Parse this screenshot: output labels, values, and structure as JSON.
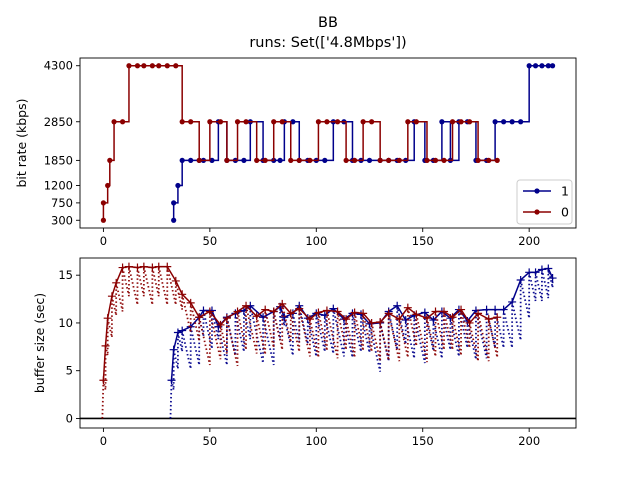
{
  "figure": {
    "title": "BB",
    "subtitle": "runs: Set(['4.8Mbps'])"
  },
  "colors": {
    "run_1": "#00008b",
    "run_0": "#8b0000"
  },
  "chart_data": [
    {
      "type": "line",
      "title": "BB",
      "subtitle": "runs: Set(['4.8Mbps'])",
      "ylabel": "bit rate (kbps)",
      "xlabel": "",
      "xlim": [
        -11,
        222
      ],
      "ylim": [
        100,
        4500
      ],
      "xticks": [
        0,
        50,
        100,
        150,
        200
      ],
      "yticks": [
        300,
        750,
        1200,
        1850,
        2850,
        4300
      ],
      "legend": "lower-right",
      "step": true,
      "series": [
        {
          "name": "1",
          "color": "#00008b",
          "marker": "dot",
          "points": [
            [
              33,
              300
            ],
            [
              33,
              750
            ],
            [
              35,
              1200
            ],
            [
              37,
              1850
            ],
            [
              41,
              1850
            ],
            [
              45,
              1850
            ],
            [
              47,
              1850
            ],
            [
              51,
              1850
            ],
            [
              54,
              2850
            ],
            [
              58,
              1850
            ],
            [
              62,
              1850
            ],
            [
              66,
              1850
            ],
            [
              69,
              2850
            ],
            [
              75,
              1850
            ],
            [
              80,
              1850
            ],
            [
              83,
              1850
            ],
            [
              85,
              2850
            ],
            [
              89,
              2850
            ],
            [
              92,
              1850
            ],
            [
              96,
              1850
            ],
            [
              100,
              1850
            ],
            [
              104,
              1850
            ],
            [
              108,
              2850
            ],
            [
              113,
              2850
            ],
            [
              117,
              1850
            ],
            [
              121,
              1850
            ],
            [
              125,
              1850
            ],
            [
              130,
              1850
            ],
            [
              134,
              1850
            ],
            [
              138,
              1850
            ],
            [
              142,
              1850
            ],
            [
              146,
              2850
            ],
            [
              151,
              1850
            ],
            [
              155,
              1850
            ],
            [
              159,
              2850
            ],
            [
              163,
              1850
            ],
            [
              167,
              2850
            ],
            [
              171,
              2850
            ],
            [
              175,
              1850
            ],
            [
              180,
              1850
            ],
            [
              184,
              2850
            ],
            [
              188,
              2850
            ],
            [
              192,
              2850
            ],
            [
              196,
              2850
            ],
            [
              200,
              4300
            ],
            [
              203,
              4300
            ],
            [
              206,
              4300
            ],
            [
              209,
              4300
            ],
            [
              211,
              4300
            ]
          ]
        },
        {
          "name": "0",
          "color": "#8b0000",
          "marker": "dot",
          "points": [
            [
              0,
              300
            ],
            [
              0,
              750
            ],
            [
              2,
              1200
            ],
            [
              3,
              1850
            ],
            [
              5,
              2850
            ],
            [
              9,
              2850
            ],
            [
              12,
              4300
            ],
            [
              16,
              4300
            ],
            [
              19,
              4300
            ],
            [
              23,
              4300
            ],
            [
              26,
              4300
            ],
            [
              30,
              4300
            ],
            [
              34,
              4300
            ],
            [
              37,
              2850
            ],
            [
              41,
              2850
            ],
            [
              45,
              1850
            ],
            [
              50,
              2850
            ],
            [
              55,
              2850
            ],
            [
              58,
              1850
            ],
            [
              63,
              2850
            ],
            [
              67,
              2850
            ],
            [
              72,
              1850
            ],
            [
              76,
              1850
            ],
            [
              80,
              2850
            ],
            [
              84,
              2850
            ],
            [
              88,
              1850
            ],
            [
              92,
              1850
            ],
            [
              97,
              1850
            ],
            [
              101,
              2850
            ],
            [
              105,
              2850
            ],
            [
              110,
              2850
            ],
            [
              114,
              1850
            ],
            [
              118,
              1850
            ],
            [
              122,
              2850
            ],
            [
              126,
              2850
            ],
            [
              130,
              1850
            ],
            [
              134,
              1850
            ],
            [
              139,
              1850
            ],
            [
              143,
              2850
            ],
            [
              147,
              2850
            ],
            [
              152,
              1850
            ],
            [
              156,
              1850
            ],
            [
              160,
              1850
            ],
            [
              164,
              2850
            ],
            [
              168,
              2850
            ],
            [
              172,
              2850
            ],
            [
              176,
              1850
            ],
            [
              181,
              1850
            ],
            [
              185,
              1850
            ]
          ]
        }
      ]
    },
    {
      "type": "line",
      "title": "",
      "ylabel": "buffer size (sec)",
      "xlabel": "",
      "xlim": [
        -11,
        222
      ],
      "ylim": [
        -1,
        16.8
      ],
      "xticks": [
        0,
        50,
        100,
        150,
        200
      ],
      "yticks": [
        0,
        5,
        10,
        15
      ],
      "reference_line_y": 0,
      "series": [
        {
          "name": "1",
          "color": "#00008b",
          "marker": "plus",
          "points": [
            [
              32,
              4.0
            ],
            [
              33,
              7.2
            ],
            [
              35,
              9.0
            ],
            [
              37,
              9.2
            ],
            [
              41,
              9.6
            ],
            [
              45,
              10.6
            ],
            [
              47,
              11.3
            ],
            [
              51,
              11.3
            ],
            [
              54,
              9.6
            ],
            [
              58,
              10.6
            ],
            [
              62,
              11.0
            ],
            [
              66,
              11.3
            ],
            [
              69,
              11.8
            ],
            [
              75,
              10.6
            ],
            [
              80,
              11.2
            ],
            [
              83,
              11.7
            ],
            [
              85,
              10.6
            ],
            [
              89,
              11.0
            ],
            [
              92,
              11.8
            ],
            [
              96,
              10.5
            ],
            [
              100,
              11.0
            ],
            [
              104,
              10.8
            ],
            [
              108,
              11.5
            ],
            [
              113,
              10.4
            ],
            [
              117,
              11.0
            ],
            [
              121,
              10.9
            ],
            [
              125,
              9.9
            ],
            [
              130,
              10.0
            ],
            [
              134,
              11.2
            ],
            [
              138,
              11.8
            ],
            [
              142,
              10.3
            ],
            [
              146,
              10.8
            ],
            [
              151,
              11.1
            ],
            [
              155,
              10.3
            ],
            [
              159,
              11.2
            ],
            [
              163,
              10.5
            ],
            [
              167,
              11.4
            ],
            [
              171,
              10.2
            ],
            [
              175,
              11.3
            ],
            [
              180,
              11.4
            ],
            [
              184,
              11.4
            ],
            [
              188,
              11.4
            ],
            [
              192,
              12.2
            ],
            [
              196,
              14.5
            ],
            [
              200,
              15.3
            ],
            [
              203,
              15.3
            ],
            [
              206,
              15.6
            ],
            [
              209,
              15.7
            ],
            [
              211,
              14.7
            ]
          ]
        },
        {
          "name": "0",
          "color": "#8b0000",
          "marker": "plus",
          "points": [
            [
              0,
              4.0
            ],
            [
              1,
              7.6
            ],
            [
              2,
              10.5
            ],
            [
              4,
              12.8
            ],
            [
              6,
              14.2
            ],
            [
              9,
              15.8
            ],
            [
              12,
              15.9
            ],
            [
              16,
              15.8
            ],
            [
              19,
              15.9
            ],
            [
              23,
              15.8
            ],
            [
              26,
              15.9
            ],
            [
              30,
              15.9
            ],
            [
              34,
              14.4
            ],
            [
              37,
              13.0
            ],
            [
              41,
              12.1
            ],
            [
              45,
              10.6
            ],
            [
              50,
              11.2
            ],
            [
              55,
              9.8
            ],
            [
              58,
              10.5
            ],
            [
              63,
              11.2
            ],
            [
              67,
              11.8
            ],
            [
              72,
              10.7
            ],
            [
              76,
              11.4
            ],
            [
              80,
              11.2
            ],
            [
              84,
              12.0
            ],
            [
              88,
              11.0
            ],
            [
              92,
              11.5
            ],
            [
              97,
              10.4
            ],
            [
              101,
              11.1
            ],
            [
              105,
              11.3
            ],
            [
              110,
              11.2
            ],
            [
              114,
              10.4
            ],
            [
              118,
              11.1
            ],
            [
              122,
              11.0
            ],
            [
              126,
              10.0
            ],
            [
              130,
              10.1
            ],
            [
              134,
              11.0
            ],
            [
              139,
              10.4
            ],
            [
              143,
              11.6
            ],
            [
              147,
              10.9
            ],
            [
              152,
              10.5
            ],
            [
              156,
              11.2
            ],
            [
              160,
              11.2
            ],
            [
              164,
              10.6
            ],
            [
              168,
              11.4
            ],
            [
              172,
              10.0
            ],
            [
              176,
              11.0
            ],
            [
              181,
              10.4
            ],
            [
              185,
              10.6
            ]
          ]
        }
      ]
    }
  ]
}
